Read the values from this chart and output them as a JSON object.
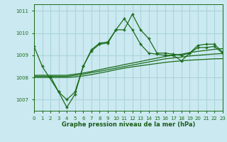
{
  "bg_color": "#cbe9f0",
  "grid_color": "#aad4dc",
  "line_color": "#1a6b1a",
  "xlabel": "Graphe pression niveau de la mer (hPa)",
  "xlabel_color": "#1a5c1a",
  "ytick_labels": [
    "1007",
    "1008",
    "1009",
    "1010",
    "1011"
  ],
  "yticks": [
    1007,
    1008,
    1009,
    1010,
    1011
  ],
  "xticks": [
    0,
    1,
    2,
    3,
    4,
    5,
    6,
    7,
    8,
    9,
    10,
    11,
    12,
    13,
    14,
    15,
    16,
    17,
    18,
    19,
    20,
    21,
    22,
    23
  ],
  "xlim": [
    0,
    23
  ],
  "ylim": [
    1006.5,
    1011.3
  ],
  "series": [
    {
      "x": [
        0,
        1,
        3,
        4,
        5,
        6,
        7,
        8,
        9,
        10,
        11,
        12,
        13,
        14,
        15,
        16,
        17,
        18,
        19,
        20,
        21,
        22,
        23
      ],
      "y": [
        1009.4,
        1008.5,
        1007.35,
        1006.65,
        1007.25,
        1008.5,
        1009.25,
        1009.55,
        1009.6,
        1010.15,
        1010.15,
        1010.85,
        1010.15,
        1009.75,
        1009.1,
        1009.1,
        1009.05,
        1009.0,
        1009.1,
        1009.45,
        1009.5,
        1009.5,
        1009.15
      ],
      "marker": "+"
    },
    {
      "x": [
        2,
        3,
        4,
        5,
        6,
        7,
        8,
        9,
        10,
        11,
        12,
        13,
        14,
        15,
        16,
        17,
        18,
        19,
        20,
        21,
        22,
        23
      ],
      "y": [
        1008.05,
        1007.35,
        1007.0,
        1007.35,
        1008.5,
        1009.2,
        1009.5,
        1009.55,
        1010.15,
        1010.65,
        1010.15,
        1009.5,
        1009.1,
        1009.05,
        1009.0,
        1009.0,
        1008.75,
        1009.1,
        1009.35,
        1009.35,
        1009.4,
        1009.1
      ],
      "marker": "+"
    },
    {
      "x": [
        0,
        1,
        2,
        3,
        4,
        5,
        6,
        7,
        8,
        9,
        10,
        11,
        12,
        13,
        14,
        15,
        16,
        17,
        18,
        19,
        20,
        21,
        22,
        23
      ],
      "y": [
        1008.1,
        1008.1,
        1008.1,
        1008.1,
        1008.1,
        1008.15,
        1008.2,
        1008.27,
        1008.35,
        1008.43,
        1008.5,
        1008.58,
        1008.65,
        1008.72,
        1008.8,
        1008.87,
        1008.95,
        1009.0,
        1009.05,
        1009.12,
        1009.18,
        1009.22,
        1009.27,
        1009.3
      ],
      "marker": null
    },
    {
      "x": [
        0,
        1,
        2,
        3,
        4,
        5,
        6,
        7,
        8,
        9,
        10,
        11,
        12,
        13,
        14,
        15,
        16,
        17,
        18,
        19,
        20,
        21,
        22,
        23
      ],
      "y": [
        1008.05,
        1008.05,
        1008.05,
        1008.05,
        1008.05,
        1008.1,
        1008.15,
        1008.22,
        1008.28,
        1008.35,
        1008.42,
        1008.49,
        1008.56,
        1008.63,
        1008.7,
        1008.77,
        1008.84,
        1008.88,
        1008.92,
        1008.97,
        1009.0,
        1009.03,
        1009.06,
        1009.08
      ],
      "marker": null
    },
    {
      "x": [
        0,
        1,
        2,
        3,
        4,
        5,
        6,
        7,
        8,
        9,
        10,
        11,
        12,
        13,
        14,
        15,
        16,
        17,
        18,
        19,
        20,
        21,
        22,
        23
      ],
      "y": [
        1008.0,
        1008.0,
        1008.0,
        1008.0,
        1008.0,
        1008.03,
        1008.07,
        1008.13,
        1008.2,
        1008.27,
        1008.35,
        1008.42,
        1008.48,
        1008.53,
        1008.58,
        1008.63,
        1008.68,
        1008.72,
        1008.75,
        1008.78,
        1008.8,
        1008.82,
        1008.84,
        1008.85
      ],
      "marker": null
    }
  ]
}
